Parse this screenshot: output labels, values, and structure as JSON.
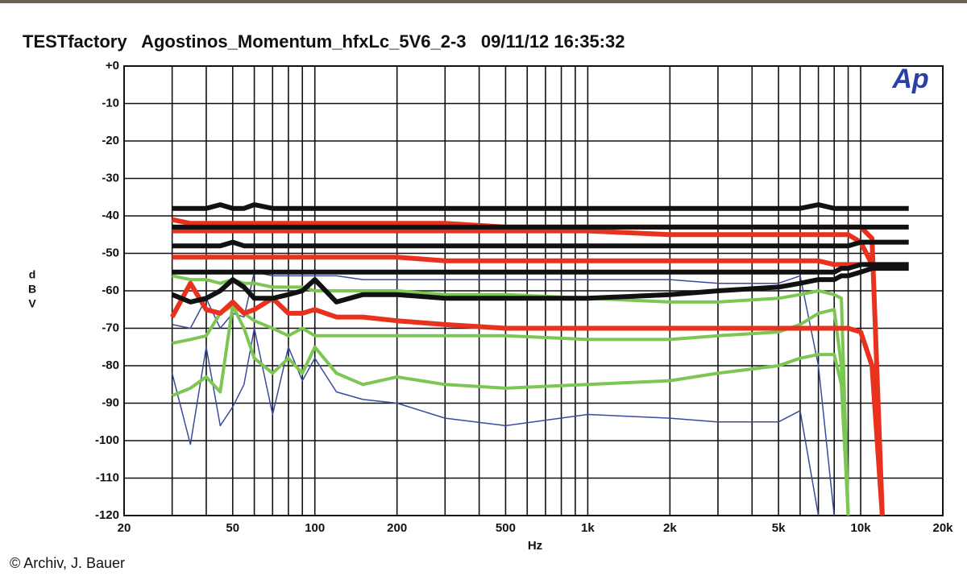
{
  "chart_data": {
    "type": "line",
    "title": "TESTfactory   Agostinos_Momentum_hfxLc_5V6_2-3   09/11/12 16:35:32",
    "logo": "Ap",
    "credit": "© Archiv, J. Bauer",
    "x_label": "Hz",
    "y_label": [
      "d",
      "B",
      "V"
    ],
    "log_x": true,
    "grid": true,
    "xlim": [
      20,
      20000
    ],
    "ylim": [
      -120,
      0
    ],
    "xticks": [
      20,
      50,
      100,
      200,
      500,
      {
        "value": 1000,
        "label": "1k"
      },
      {
        "value": 2000,
        "label": "2k"
      },
      {
        "value": 5000,
        "label": "5k"
      },
      {
        "value": 10000,
        "label": "10k"
      },
      {
        "value": 20000,
        "label": "20k"
      }
    ],
    "xminorticks": [
      30,
      40,
      60,
      70,
      80,
      90,
      300,
      400,
      600,
      700,
      800,
      900,
      3000,
      4000,
      6000,
      7000,
      8000,
      9000
    ],
    "yticks": [
      {
        "value": 0,
        "label": "+0"
      },
      -10,
      -20,
      -30,
      -40,
      -50,
      -60,
      -70,
      -80,
      -90,
      -100,
      -110,
      -120
    ],
    "x": [
      30,
      35,
      40,
      45,
      50,
      55,
      60,
      70,
      80,
      90,
      100,
      120,
      150,
      200,
      300,
      500,
      1000,
      2000,
      3000,
      5000,
      6000,
      7000,
      8000,
      8500,
      9000,
      10000,
      11000,
      12000,
      15000
    ],
    "series": [
      {
        "color": "#3a4a9c",
        "width": 1.5,
        "values": [
          -69,
          -70,
          -62,
          -70,
          -66,
          -67,
          -55,
          -56,
          -56,
          -56,
          -56,
          -56,
          -57,
          -57,
          -57,
          -57,
          -57,
          -57,
          -58,
          -58,
          -56,
          -80,
          -120,
          null,
          null,
          null,
          null,
          null,
          null
        ]
      },
      {
        "color": "#3a4a9c",
        "width": 1.5,
        "values": [
          -82,
          -101,
          -75,
          -96,
          -91,
          -85,
          -70,
          -93,
          -75,
          -84,
          -78,
          -87,
          -89,
          -90,
          -94,
          -96,
          -93,
          -94,
          -95,
          -95,
          -92,
          -120,
          null,
          null,
          null,
          null,
          null,
          null,
          null
        ]
      },
      {
        "color": "#7cc653",
        "width": 4,
        "values": [
          -56,
          -57,
          -57,
          -58,
          -57,
          -58,
          -58,
          -59,
          -59,
          -59,
          -60,
          -60,
          -60,
          -60,
          -61,
          -61,
          -62,
          -63,
          -63,
          -62,
          -61,
          -60,
          -61,
          -62,
          -120,
          null,
          null,
          null,
          null
        ]
      },
      {
        "color": "#7cc653",
        "width": 4,
        "values": [
          -74,
          -73,
          -72,
          -66,
          -64,
          -66,
          -68,
          -70,
          -72,
          -70,
          -72,
          -72,
          -72,
          -72,
          -72,
          -72,
          -73,
          -73,
          -72,
          -71,
          -69,
          -66,
          -65,
          -80,
          -120,
          null,
          null,
          null,
          null
        ]
      },
      {
        "color": "#7cc653",
        "width": 4,
        "values": [
          -88,
          -86,
          -83,
          -87,
          -64,
          -70,
          -78,
          -82,
          -78,
          -82,
          -75,
          -82,
          -85,
          -83,
          -85,
          -86,
          -85,
          -84,
          -82,
          -80,
          -78,
          -77,
          -77,
          -85,
          -120,
          null,
          null,
          null,
          null
        ]
      },
      {
        "color": "#e8321e",
        "width": 6,
        "values": [
          -41,
          -42,
          -42,
          -42,
          -42,
          -42,
          -42,
          -42,
          -42,
          -42,
          -42,
          -42,
          -42,
          -42,
          -42,
          -43,
          -43,
          -43,
          -43,
          -43,
          -43,
          -43,
          -43,
          -43,
          -43,
          -43,
          -46,
          -120,
          null
        ]
      },
      {
        "color": "#e8321e",
        "width": 6,
        "values": [
          -44,
          -44,
          -44,
          -44,
          -44,
          -44,
          -44,
          -44,
          -44,
          -44,
          -44,
          -44,
          -44,
          -44,
          -44,
          -44,
          -44,
          -45,
          -45,
          -45,
          -45,
          -45,
          -45,
          -45,
          -45,
          -47,
          -53,
          null,
          null
        ]
      },
      {
        "color": "#e8321e",
        "width": 6,
        "values": [
          -51,
          -51,
          -51,
          -51,
          -51,
          -51,
          -51,
          -51,
          -51,
          -51,
          -51,
          -51,
          -51,
          -51,
          -52,
          -52,
          -52,
          -52,
          -52,
          -52,
          -52,
          -52,
          -53,
          -53,
          -53,
          -53,
          null,
          null,
          null
        ]
      },
      {
        "color": "#e8321e",
        "width": 6,
        "values": [
          -67,
          -58,
          -65,
          -66,
          -63,
          -66,
          -65,
          -62,
          -66,
          -66,
          -65,
          -67,
          -67,
          -68,
          -69,
          -70,
          -70,
          -70,
          -70,
          -70,
          -70,
          -70,
          -70,
          -70,
          -70,
          -71,
          -80,
          -120,
          null
        ]
      },
      {
        "color": "#111111",
        "width": 6,
        "values": [
          -38,
          -38,
          -38,
          -37,
          -38,
          -38,
          -37,
          -38,
          -38,
          -38,
          -38,
          -38,
          -38,
          -38,
          -38,
          -38,
          -38,
          -38,
          -38,
          -38,
          -38,
          -37,
          -38,
          -38,
          -38,
          -38,
          -38,
          -38,
          -38
        ]
      },
      {
        "color": "#111111",
        "width": 6,
        "values": [
          -43,
          -43,
          -43,
          -43,
          -43,
          -43,
          -43,
          -43,
          -43,
          -43,
          -43,
          -43,
          -43,
          -43,
          -43,
          -43,
          -43,
          -43,
          -43,
          -43,
          -43,
          -43,
          -43,
          -43,
          -43,
          -43,
          -43,
          -43,
          -43
        ]
      },
      {
        "color": "#111111",
        "width": 6,
        "values": [
          -48,
          -48,
          -48,
          -48,
          -47,
          -48,
          -48,
          -48,
          -48,
          -48,
          -48,
          -48,
          -48,
          -48,
          -48,
          -48,
          -48,
          -48,
          -48,
          -48,
          -48,
          -48,
          -48,
          -48,
          -48,
          -47,
          -47,
          -47,
          -47
        ]
      },
      {
        "color": "#111111",
        "width": 6,
        "values": [
          -55,
          -55,
          -55,
          -55,
          -55,
          -55,
          -55,
          -55,
          -55,
          -55,
          -55,
          -55,
          -55,
          -55,
          -55,
          -55,
          -55,
          -55,
          -55,
          -55,
          -55,
          -55,
          -55,
          -54,
          -54,
          -53,
          -53,
          -53,
          -53
        ]
      },
      {
        "color": "#111111",
        "width": 6,
        "values": [
          -61,
          -63,
          -62,
          -60,
          -57,
          -59,
          -62,
          -62,
          -61,
          -60,
          -57,
          -63,
          -61,
          -61,
          -62,
          -62,
          -62,
          -61,
          -60,
          -59,
          -58,
          -57,
          -57,
          -56,
          -56,
          -55,
          -54,
          -54,
          -54
        ]
      }
    ]
  }
}
